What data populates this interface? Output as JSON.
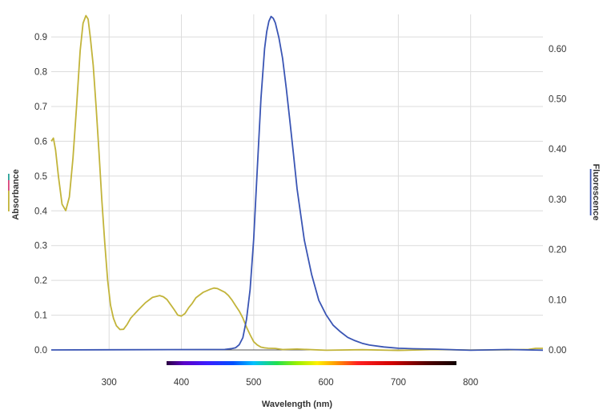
{
  "chart_data": {
    "type": "line",
    "title": "",
    "xlabel": "Wavelength (nm)",
    "ylabel_left": "Absorbance",
    "ylabel_right": "Fluorescence",
    "xlim": [
      220,
      900
    ],
    "ylim_left": [
      0,
      0.96
    ],
    "ylim_right": [
      0,
      0.665
    ],
    "x_ticks": [
      "300",
      "400",
      "500",
      "600",
      "700",
      "800"
    ],
    "y_left_ticks": [
      "0.0",
      "0.1",
      "0.2",
      "0.3",
      "0.4",
      "0.5",
      "0.6",
      "0.7",
      "0.8",
      "0.9"
    ],
    "y_right_ticks": [
      "0.00",
      "0.10",
      "0.20",
      "0.30",
      "0.40",
      "0.50",
      "0.60"
    ],
    "grid": true,
    "legend": "axis-title swatches",
    "visible_spectrum_bar": {
      "from_nm": 380,
      "to_nm": 780
    },
    "series": [
      {
        "name": "Absorbance",
        "axis": "left",
        "color": "#c2b43a",
        "x": [
          220,
          223,
          226,
          230,
          235,
          240,
          245,
          250,
          255,
          260,
          264,
          268,
          271,
          274,
          278,
          282,
          286,
          290,
          294,
          298,
          302,
          306,
          310,
          315,
          320,
          325,
          330,
          340,
          350,
          360,
          370,
          375,
          380,
          385,
          390,
          395,
          400,
          405,
          410,
          415,
          420,
          430,
          440,
          445,
          450,
          455,
          460,
          465,
          470,
          475,
          480,
          485,
          490,
          495,
          500,
          505,
          510,
          515,
          520,
          530,
          540,
          560,
          600,
          650,
          700,
          750,
          800,
          850,
          880,
          890,
          900
        ],
        "y": [
          0.6,
          0.61,
          0.575,
          0.5,
          0.42,
          0.4,
          0.44,
          0.55,
          0.7,
          0.86,
          0.94,
          0.96,
          0.95,
          0.9,
          0.82,
          0.7,
          0.57,
          0.43,
          0.31,
          0.2,
          0.13,
          0.09,
          0.07,
          0.06,
          0.06,
          0.075,
          0.09,
          0.115,
          0.135,
          0.15,
          0.155,
          0.152,
          0.145,
          0.132,
          0.115,
          0.1,
          0.098,
          0.105,
          0.12,
          0.135,
          0.15,
          0.167,
          0.175,
          0.177,
          0.176,
          0.172,
          0.166,
          0.156,
          0.143,
          0.128,
          0.11,
          0.09,
          0.065,
          0.045,
          0.025,
          0.014,
          0.008,
          0.005,
          0.004,
          0.003,
          0.002,
          0.001,
          0.0,
          0.0,
          0.0,
          0.0,
          0.0,
          0.0,
          0.0,
          0.004,
          0.003
        ]
      },
      {
        "name": "Fluorescence",
        "axis": "right",
        "color": "#3a55b4",
        "x": [
          220,
          460,
          470,
          475,
          480,
          485,
          490,
          495,
          500,
          505,
          510,
          515,
          518,
          521,
          524,
          527,
          530,
          535,
          540,
          545,
          550,
          555,
          560,
          570,
          580,
          590,
          600,
          610,
          620,
          630,
          640,
          650,
          660,
          680,
          700,
          720,
          750,
          800,
          850,
          900
        ],
        "y": [
          0.0,
          0.0,
          0.002,
          0.004,
          0.01,
          0.025,
          0.06,
          0.12,
          0.22,
          0.36,
          0.5,
          0.6,
          0.635,
          0.655,
          0.665,
          0.66,
          0.65,
          0.62,
          0.58,
          0.52,
          0.455,
          0.39,
          0.32,
          0.22,
          0.15,
          0.1,
          0.07,
          0.05,
          0.035,
          0.025,
          0.018,
          0.013,
          0.01,
          0.006,
          0.004,
          0.002,
          0.001,
          0.0,
          0.0,
          0.0
        ]
      }
    ]
  }
}
